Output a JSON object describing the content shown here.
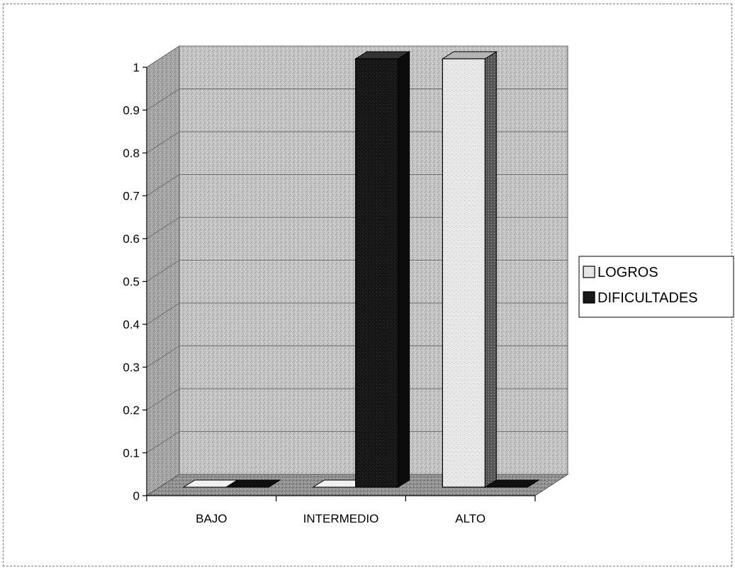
{
  "chart_data": {
    "type": "bar",
    "style": "3d-clustered-column",
    "categories": [
      "BAJO",
      "INTERMEDIO",
      "ALTO"
    ],
    "series": [
      {
        "name": "LOGROS",
        "values": [
          0,
          0,
          1
        ],
        "color": "#f2f2f2"
      },
      {
        "name": "DIFICULTADES",
        "values": [
          0,
          1,
          0
        ],
        "color": "#151515"
      }
    ],
    "ylim": [
      0,
      1
    ],
    "yticks": [
      "0",
      "0.1",
      "0.2",
      "0.3",
      "0.4",
      "0.5",
      "0.6",
      "0.7",
      "0.8",
      "0.9",
      "1"
    ],
    "grid": true,
    "legend_position": "right",
    "colors": {
      "wall": "#bdbdbd",
      "side_wall": "#a9a9a9",
      "floor": "#8c8c8c",
      "grid": "#6e6e6e"
    }
  }
}
